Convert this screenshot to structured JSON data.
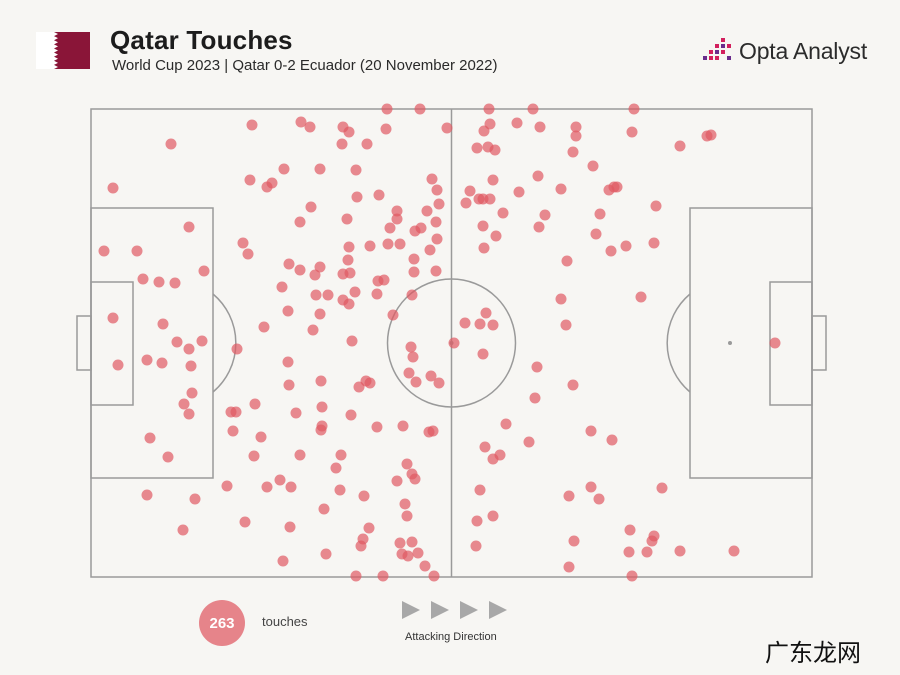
{
  "header": {
    "title": "Qatar Touches",
    "subtitle": "World Cup 2023 | Qatar 0-2 Ecuador (20 November 2022)",
    "brand": "Opta Analyst"
  },
  "legend": {
    "count": "263",
    "count_label": "touches",
    "direction_label": "Attacking Direction"
  },
  "watermark": "广东龙网",
  "colors": {
    "flag_maroon": "#8a1538",
    "touch_dot": "#e05a62",
    "pitch_lines": "#9a9a9a",
    "brand_accent": "#d21f5d"
  },
  "icons": [
    "qatar-flag-icon",
    "opta-analyst-logo-icon",
    "attacking-direction-arrow-icon"
  ]
}
